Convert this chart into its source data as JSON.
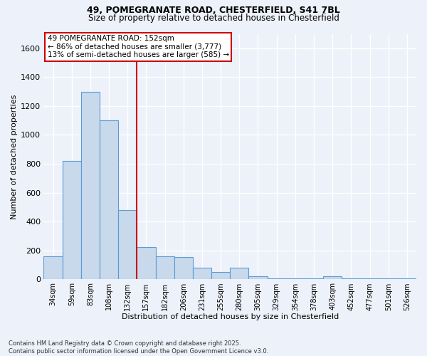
{
  "title_line1": "49, POMEGRANATE ROAD, CHESTERFIELD, S41 7BL",
  "title_line2": "Size of property relative to detached houses in Chesterfield",
  "xlabel": "Distribution of detached houses by size in Chesterfield",
  "ylabel": "Number of detached properties",
  "bar_color": "#c8d9ec",
  "bar_edge_color": "#5b9bd5",
  "vline_color": "#cc0000",
  "vline_x": 4.5,
  "annotation_title": "49 POMEGRANATE ROAD: 152sqm",
  "annotation_line2": "← 86% of detached houses are smaller (3,777)",
  "annotation_line3": "13% of semi-detached houses are larger (585) →",
  "annotation_box_color": "#cc0000",
  "footer_line1": "Contains HM Land Registry data © Crown copyright and database right 2025.",
  "footer_line2": "Contains public sector information licensed under the Open Government Licence v3.0.",
  "categories": [
    "34sqm",
    "59sqm",
    "83sqm",
    "108sqm",
    "132sqm",
    "157sqm",
    "182sqm",
    "206sqm",
    "231sqm",
    "255sqm",
    "280sqm",
    "305sqm",
    "329sqm",
    "354sqm",
    "378sqm",
    "403sqm",
    "452sqm",
    "477sqm",
    "501sqm",
    "526sqm"
  ],
  "values": [
    160,
    820,
    1300,
    1100,
    480,
    225,
    160,
    155,
    80,
    50,
    80,
    20,
    5,
    5,
    5,
    20,
    5,
    5,
    5,
    5
  ],
  "ylim": [
    0,
    1700
  ],
  "yticks": [
    0,
    200,
    400,
    600,
    800,
    1000,
    1200,
    1400,
    1600
  ],
  "bg_color": "#edf1f9",
  "grid_color": "#ffffff"
}
